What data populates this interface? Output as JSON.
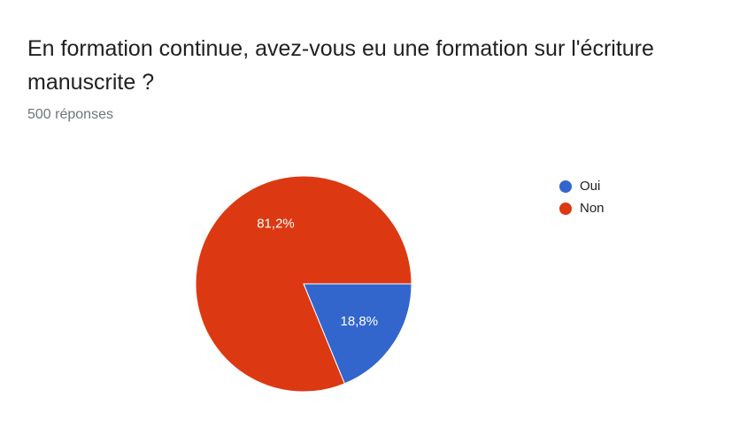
{
  "question": {
    "title": "En formation continue, avez-vous eu une formation sur l'écriture manuscrite ?",
    "responses": "500 réponses"
  },
  "colors": {
    "oui": "#3366cc",
    "non": "#dc3912",
    "slice_border": "#ffffff"
  },
  "chart_data": {
    "type": "pie",
    "categories": [
      "Oui",
      "Non"
    ],
    "values": [
      18.8,
      81.2
    ],
    "labels": [
      "18,8%",
      "81,2%"
    ],
    "colors": [
      "#3366cc",
      "#dc3912"
    ],
    "legend": [
      "Oui",
      "Non"
    ],
    "legend_position": "right",
    "start": "3 o'clock, clockwise"
  }
}
